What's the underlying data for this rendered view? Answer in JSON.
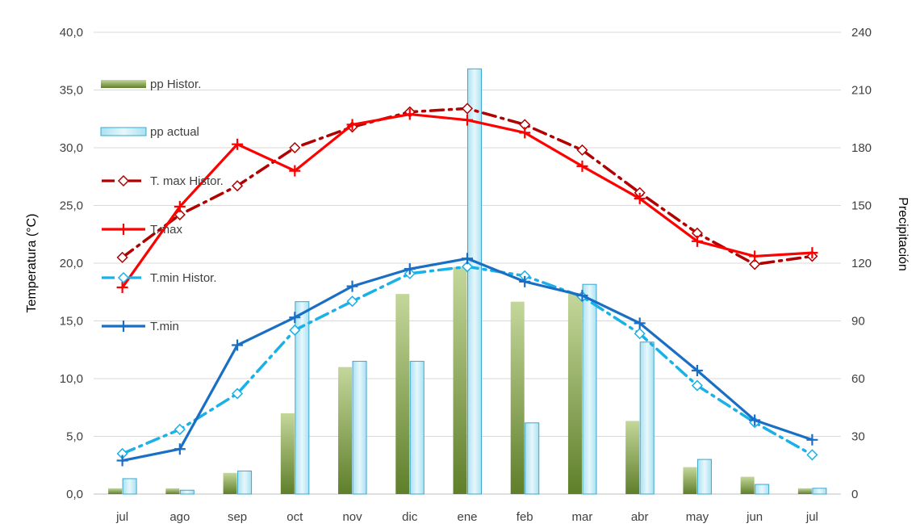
{
  "chart_data": {
    "type": "bar",
    "title": "",
    "categories": [
      "jul",
      "ago",
      "sep",
      "oct",
      "nov",
      "dic",
      "ene",
      "feb",
      "mar",
      "abr",
      "may",
      "jun",
      "jul"
    ],
    "ylabel": "Temperatura (°C)",
    "y2label": "Precipitación",
    "ylim": [
      0,
      40
    ],
    "y2lim": [
      0,
      240
    ],
    "yticks": [
      "0,0",
      "5,0",
      "10,0",
      "15,0",
      "20,0",
      "25,0",
      "30,0",
      "35,0",
      "40,0"
    ],
    "y2ticks": [
      "0",
      "30",
      "60",
      "90",
      "120",
      "150",
      "180",
      "210",
      "240"
    ],
    "grid": true,
    "legend_position": "top-left",
    "series": [
      {
        "name": "pp Histor.",
        "type": "bar",
        "axis": "right",
        "color": "#7a9a3a",
        "values": [
          3,
          3,
          11,
          42,
          66,
          104,
          118,
          100,
          104,
          38,
          14,
          9,
          3
        ]
      },
      {
        "name": "pp actual",
        "type": "bar",
        "axis": "right",
        "color": "#bfe8f5",
        "values": [
          8,
          2,
          12,
          100,
          69,
          69,
          221,
          37,
          109,
          79,
          18,
          5,
          3
        ]
      },
      {
        "name": "T. max Histor.",
        "type": "line",
        "axis": "left",
        "color": "#b00000",
        "style": "dash-dot-diamond",
        "values": [
          20.5,
          24.2,
          26.7,
          30.0,
          31.8,
          33.1,
          33.4,
          32.0,
          29.8,
          26.1,
          22.6,
          19.9,
          20.6
        ]
      },
      {
        "name": "T.max",
        "type": "line",
        "axis": "left",
        "color": "#ff0000",
        "style": "solid-plus",
        "values": [
          17.9,
          24.9,
          30.3,
          28.0,
          32.0,
          32.9,
          32.4,
          31.3,
          28.4,
          25.6,
          21.9,
          20.6,
          20.9
        ]
      },
      {
        "name": "T.min Histor.",
        "type": "line",
        "axis": "left",
        "color": "#1ab0e8",
        "style": "dash-dot-diamond",
        "values": [
          3.5,
          5.6,
          8.7,
          14.2,
          16.7,
          19.1,
          19.7,
          18.9,
          17.1,
          13.9,
          9.4,
          6.2,
          3.4
        ]
      },
      {
        "name": "T.min",
        "type": "line",
        "axis": "left",
        "color": "#1a6fc4",
        "style": "solid-plus",
        "values": [
          2.9,
          3.9,
          12.9,
          15.3,
          18.0,
          19.5,
          20.4,
          18.4,
          17.2,
          14.8,
          10.7,
          6.4,
          4.7
        ]
      }
    ]
  }
}
